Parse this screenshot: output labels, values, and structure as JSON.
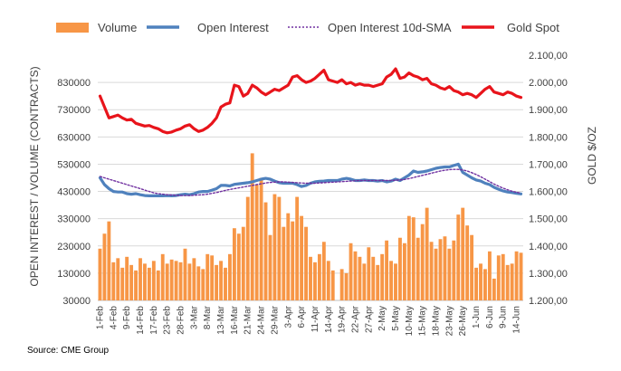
{
  "chart_data": {
    "type": "bar",
    "legend": {
      "placement": "top",
      "entries": [
        "Volume",
        "Open Interest",
        "Open Interest 10d-SMA",
        "Gold Spot"
      ]
    },
    "ylabel": "OPEN INTEREST / VOLUME (CONTRACTS)",
    "ylabel_right": "GOLD $/OZ",
    "source": "Source: CME Group",
    "ylim": [
      30000,
      930000
    ],
    "ylim_right": [
      1200,
      2100
    ],
    "y_ticks": [
      "30000",
      "130000",
      "230000",
      "330000",
      "430000",
      "530000",
      "630000",
      "730000",
      "830000"
    ],
    "y_ticks_values": [
      30000,
      130000,
      230000,
      330000,
      430000,
      530000,
      630000,
      730000,
      830000
    ],
    "y_right_ticks": [
      "1.200,00",
      "1.300,00",
      "1.400,00",
      "1.500,00",
      "1.600,00",
      "1.700,00",
      "1.800,00",
      "1.900,00",
      "2.000,00",
      "2.100,00"
    ],
    "y_right_ticks_values": [
      1200,
      1300,
      1400,
      1500,
      1600,
      1700,
      1800,
      1900,
      2000,
      2100
    ],
    "x_tick_labels": [
      "1-Feb",
      "4-Feb",
      "9-Feb",
      "14-Feb",
      "17-Feb",
      "23-Feb",
      "28-Feb",
      "3-Mar",
      "8-Mar",
      "13-Mar",
      "16-Mar",
      "21-Mar",
      "24-Mar",
      "29-Mar",
      "3-Apr",
      "6-Apr",
      "11-Apr",
      "14-Apr",
      "19-Apr",
      "22-Apr",
      "27-Apr",
      "2-May",
      "5-May",
      "10-May",
      "15-May",
      "18-May",
      "23-May",
      "26-May",
      "1-Jun",
      "6-Jun",
      "9-Jun",
      "14-Jun"
    ],
    "x_tick_indices": [
      0,
      3,
      6,
      9,
      12,
      15,
      18,
      21,
      24,
      27,
      30,
      33,
      36,
      39,
      42,
      45,
      48,
      51,
      54,
      57,
      60,
      63,
      66,
      69,
      72,
      75,
      78,
      81,
      84,
      87,
      90,
      93
    ],
    "series": [
      {
        "name": "Volume",
        "kind": "bar",
        "color": "#F79646",
        "values": [
          220000,
          275000,
          320000,
          170000,
          185000,
          150000,
          190000,
          160000,
          140000,
          185000,
          165000,
          150000,
          175000,
          140000,
          200000,
          165000,
          180000,
          175000,
          170000,
          220000,
          165000,
          185000,
          155000,
          145000,
          200000,
          195000,
          160000,
          175000,
          150000,
          200000,
          295000,
          275000,
          300000,
          410000,
          570000,
          455000,
          480000,
          390000,
          270000,
          420000,
          410000,
          300000,
          350000,
          320000,
          410000,
          340000,
          300000,
          190000,
          170000,
          200000,
          245000,
          175000,
          140000,
          30000,
          145000,
          130000,
          240000,
          210000,
          190000,
          165000,
          225000,
          190000,
          160000,
          200000,
          250000,
          175000,
          165000,
          260000,
          240000,
          340000,
          335000,
          260000,
          310000,
          370000,
          245000,
          220000,
          255000,
          265000,
          220000,
          250000,
          345000,
          370000,
          305000,
          270000,
          150000,
          165000,
          145000,
          210000,
          110000,
          195000,
          200000,
          160000,
          165000,
          210000,
          205000
        ]
      },
      {
        "name": "Open Interest",
        "kind": "line",
        "color": "#4F81BD",
        "values": [
          480000,
          455000,
          440000,
          430000,
          428000,
          428000,
          422000,
          420000,
          422000,
          418000,
          415000,
          414000,
          414000,
          414000,
          414000,
          415000,
          414000,
          415000,
          418000,
          420000,
          418000,
          422000,
          428000,
          430000,
          430000,
          435000,
          440000,
          452000,
          452000,
          450000,
          456000,
          458000,
          460000,
          462000,
          465000,
          470000,
          475000,
          478000,
          475000,
          468000,
          462000,
          460000,
          460000,
          460000,
          455000,
          448000,
          452000,
          460000,
          465000,
          467000,
          468000,
          470000,
          470000,
          470000,
          475000,
          478000,
          475000,
          470000,
          470000,
          472000,
          470000,
          470000,
          468000,
          470000,
          465000,
          468000,
          475000,
          470000,
          480000,
          490000,
          505000,
          500000,
          502000,
          505000,
          510000,
          515000,
          518000,
          520000,
          520000,
          525000,
          530000,
          500000,
          490000,
          480000,
          472000,
          468000,
          460000,
          455000,
          445000,
          438000,
          432000,
          428000,
          426000,
          423000,
          421000
        ]
      },
      {
        "name": "Open Interest 10d-SMA",
        "kind": "line",
        "dotted": true,
        "color": "#7030A0",
        "values": [
          485000,
          480000,
          475000,
          470000,
          465000,
          460000,
          455000,
          450000,
          445000,
          440000,
          435000,
          430000,
          425000,
          422000,
          420000,
          418000,
          417000,
          416000,
          415000,
          415000,
          415000,
          416000,
          417000,
          418000,
          420000,
          423000,
          426000,
          430000,
          434000,
          437000,
          440000,
          443000,
          446000,
          449000,
          452000,
          455000,
          458000,
          461000,
          463000,
          464000,
          465000,
          465000,
          464000,
          463000,
          462000,
          461000,
          460000,
          460000,
          460000,
          461000,
          462000,
          463000,
          464000,
          465000,
          466000,
          467000,
          468000,
          469000,
          470000,
          470000,
          470000,
          470000,
          470000,
          470000,
          470000,
          470000,
          471000,
          472000,
          474000,
          477000,
          481000,
          485000,
          489000,
          493000,
          497000,
          501000,
          505000,
          508000,
          510000,
          511000,
          511000,
          509000,
          505000,
          499000,
          492000,
          484000,
          475000,
          466000,
          457000,
          449000,
          442000,
          436000,
          431000,
          427000,
          424000
        ]
      },
      {
        "name": "Gold Spot",
        "kind": "line",
        "axis": "right",
        "color": "#E8141B",
        "values": [
          1950,
          1910,
          1870,
          1875,
          1880,
          1870,
          1862,
          1865,
          1850,
          1845,
          1840,
          1842,
          1835,
          1830,
          1820,
          1815,
          1818,
          1825,
          1830,
          1840,
          1845,
          1830,
          1820,
          1825,
          1835,
          1850,
          1870,
          1910,
          1920,
          1925,
          1990,
          1985,
          1950,
          1960,
          1990,
          1980,
          1965,
          1955,
          1965,
          1975,
          1970,
          1980,
          1990,
          2020,
          2025,
          2010,
          2000,
          2005,
          2015,
          2030,
          2045,
          2010,
          2005,
          2000,
          2010,
          1995,
          2000,
          1990,
          1995,
          1990,
          1990,
          1985,
          1990,
          1995,
          2020,
          2030,
          2050,
          2015,
          2020,
          2035,
          2025,
          2020,
          2010,
          2015,
          1995,
          1990,
          1980,
          1975,
          1985,
          1970,
          1965,
          1955,
          1960,
          1955,
          1945,
          1960,
          1975,
          1985,
          1965,
          1960,
          1955,
          1965,
          1960,
          1950,
          1945
        ]
      }
    ]
  }
}
